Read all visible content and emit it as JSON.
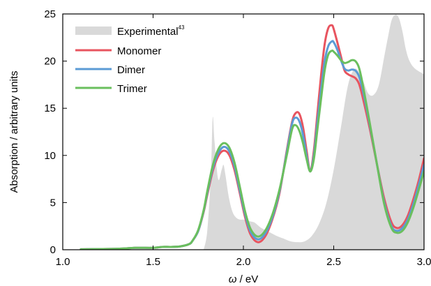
{
  "chart_data": {
    "type": "line",
    "xlabel_symbol": "ω",
    "xlabel_unit": " / eV",
    "ylabel": "Absorption / arbitrary units",
    "xlim": [
      1.0,
      3.0
    ],
    "ylim": [
      0,
      25
    ],
    "xticks": [
      "1.0",
      "1.5",
      "2.0",
      "2.5",
      "3.0"
    ],
    "yticks": [
      "0",
      "5",
      "10",
      "15",
      "20",
      "25"
    ],
    "grid": false,
    "legend_position": "top-left",
    "experimental": {
      "name": "Experimental",
      "ref": "43",
      "color": "#d9d9d9",
      "x": [
        1.78,
        1.8,
        1.82,
        1.83,
        1.84,
        1.86,
        1.88,
        1.89,
        1.9,
        1.92,
        1.94,
        1.96,
        1.98,
        2.0,
        2.02,
        2.04,
        2.06,
        2.08,
        2.1,
        2.14,
        2.18,
        2.22,
        2.26,
        2.3,
        2.34,
        2.38,
        2.42,
        2.46,
        2.5,
        2.54,
        2.58,
        2.62,
        2.66,
        2.69,
        2.72,
        2.75,
        2.78,
        2.8,
        2.82,
        2.84,
        2.86,
        2.88,
        2.9,
        2.92,
        2.95,
        3.0
      ],
      "y": [
        0,
        2.0,
        8.0,
        14.0,
        11.5,
        7.5,
        8.5,
        9.0,
        8.0,
        5.5,
        4.0,
        3.4,
        3.2,
        3.2,
        3.1,
        3.0,
        2.9,
        2.6,
        2.3,
        1.9,
        1.5,
        1.2,
        0.9,
        0.8,
        0.9,
        1.5,
        2.8,
        5.0,
        8.5,
        13.0,
        17.5,
        19.2,
        18.0,
        16.6,
        16.4,
        17.5,
        20.5,
        22.5,
        24.3,
        24.9,
        24.6,
        23.2,
        21.2,
        20.0,
        19.2,
        18.6
      ]
    },
    "series": [
      {
        "name": "Monomer",
        "color": "#e8545f",
        "x": [
          1.1,
          1.3,
          1.4,
          1.5,
          1.55,
          1.6,
          1.65,
          1.7,
          1.72,
          1.75,
          1.78,
          1.8,
          1.83,
          1.86,
          1.89,
          1.92,
          1.95,
          1.98,
          2.01,
          2.04,
          2.08,
          2.12,
          2.16,
          2.2,
          2.24,
          2.27,
          2.29,
          2.31,
          2.33,
          2.35,
          2.37,
          2.39,
          2.41,
          2.43,
          2.45,
          2.47,
          2.49,
          2.5,
          2.52,
          2.54,
          2.56,
          2.58,
          2.6,
          2.62,
          2.64,
          2.66,
          2.7,
          2.74,
          2.78,
          2.82,
          2.85,
          2.88,
          2.91,
          2.94,
          2.97,
          3.0
        ],
        "y": [
          0.05,
          0.1,
          0.2,
          0.2,
          0.3,
          0.3,
          0.35,
          0.6,
          1.0,
          2.0,
          4.0,
          5.8,
          8.3,
          9.9,
          10.5,
          10.1,
          8.5,
          6.0,
          3.4,
          1.6,
          0.8,
          1.4,
          3.2,
          6.0,
          10.5,
          13.6,
          14.5,
          14.4,
          13.0,
          10.5,
          8.3,
          10.5,
          14.5,
          18.5,
          21.8,
          23.5,
          23.8,
          23.4,
          22.0,
          20.5,
          19.0,
          18.6,
          18.4,
          18.2,
          17.6,
          16.2,
          12.8,
          9.0,
          5.4,
          2.9,
          2.3,
          2.6,
          3.6,
          5.3,
          7.3,
          9.7
        ]
      },
      {
        "name": "Dimer",
        "color": "#5b9bd5",
        "x": [
          1.1,
          1.3,
          1.4,
          1.5,
          1.55,
          1.6,
          1.65,
          1.7,
          1.72,
          1.75,
          1.78,
          1.8,
          1.83,
          1.86,
          1.89,
          1.92,
          1.95,
          1.98,
          2.01,
          2.04,
          2.08,
          2.12,
          2.16,
          2.2,
          2.24,
          2.27,
          2.29,
          2.31,
          2.33,
          2.35,
          2.37,
          2.39,
          2.41,
          2.43,
          2.45,
          2.47,
          2.49,
          2.5,
          2.52,
          2.54,
          2.56,
          2.58,
          2.6,
          2.62,
          2.64,
          2.66,
          2.7,
          2.74,
          2.78,
          2.82,
          2.85,
          2.88,
          2.91,
          2.94,
          2.97,
          3.0
        ],
        "y": [
          0.05,
          0.1,
          0.2,
          0.2,
          0.3,
          0.3,
          0.35,
          0.6,
          1.0,
          2.0,
          4.1,
          6.0,
          8.6,
          10.2,
          10.9,
          10.5,
          8.9,
          6.3,
          3.7,
          1.9,
          1.1,
          1.7,
          3.4,
          6.2,
          10.3,
          13.4,
          14.0,
          13.6,
          12.2,
          10.0,
          8.3,
          10.0,
          13.6,
          17.0,
          20.0,
          21.6,
          22.1,
          22.0,
          21.2,
          20.1,
          19.2,
          19.0,
          19.1,
          19.0,
          18.4,
          17.0,
          13.2,
          9.0,
          5.0,
          2.5,
          2.0,
          2.3,
          3.2,
          4.8,
          6.8,
          9.0
        ]
      },
      {
        "name": "Trimer",
        "color": "#6abf5e",
        "x": [
          1.1,
          1.3,
          1.4,
          1.5,
          1.55,
          1.6,
          1.65,
          1.7,
          1.72,
          1.75,
          1.78,
          1.8,
          1.83,
          1.86,
          1.89,
          1.92,
          1.95,
          1.98,
          2.01,
          2.04,
          2.08,
          2.12,
          2.16,
          2.2,
          2.24,
          2.27,
          2.29,
          2.31,
          2.33,
          2.35,
          2.37,
          2.39,
          2.41,
          2.43,
          2.45,
          2.47,
          2.49,
          2.5,
          2.52,
          2.54,
          2.56,
          2.58,
          2.6,
          2.62,
          2.64,
          2.66,
          2.7,
          2.74,
          2.78,
          2.82,
          2.85,
          2.88,
          2.91,
          2.94,
          2.97,
          3.0
        ],
        "y": [
          0.05,
          0.1,
          0.2,
          0.2,
          0.3,
          0.3,
          0.35,
          0.6,
          1.0,
          2.1,
          4.2,
          6.2,
          8.9,
          10.6,
          11.3,
          10.9,
          9.3,
          6.7,
          4.0,
          2.2,
          1.4,
          2.0,
          3.7,
          6.4,
          10.0,
          12.8,
          13.2,
          12.6,
          11.3,
          9.6,
          8.3,
          9.6,
          12.8,
          16.0,
          19.0,
          20.7,
          21.1,
          21.0,
          20.6,
          20.1,
          19.8,
          19.9,
          20.1,
          20.0,
          19.3,
          17.6,
          13.4,
          9.0,
          4.8,
          2.3,
          1.8,
          2.0,
          2.9,
          4.4,
          6.3,
          8.3
        ]
      }
    ]
  }
}
